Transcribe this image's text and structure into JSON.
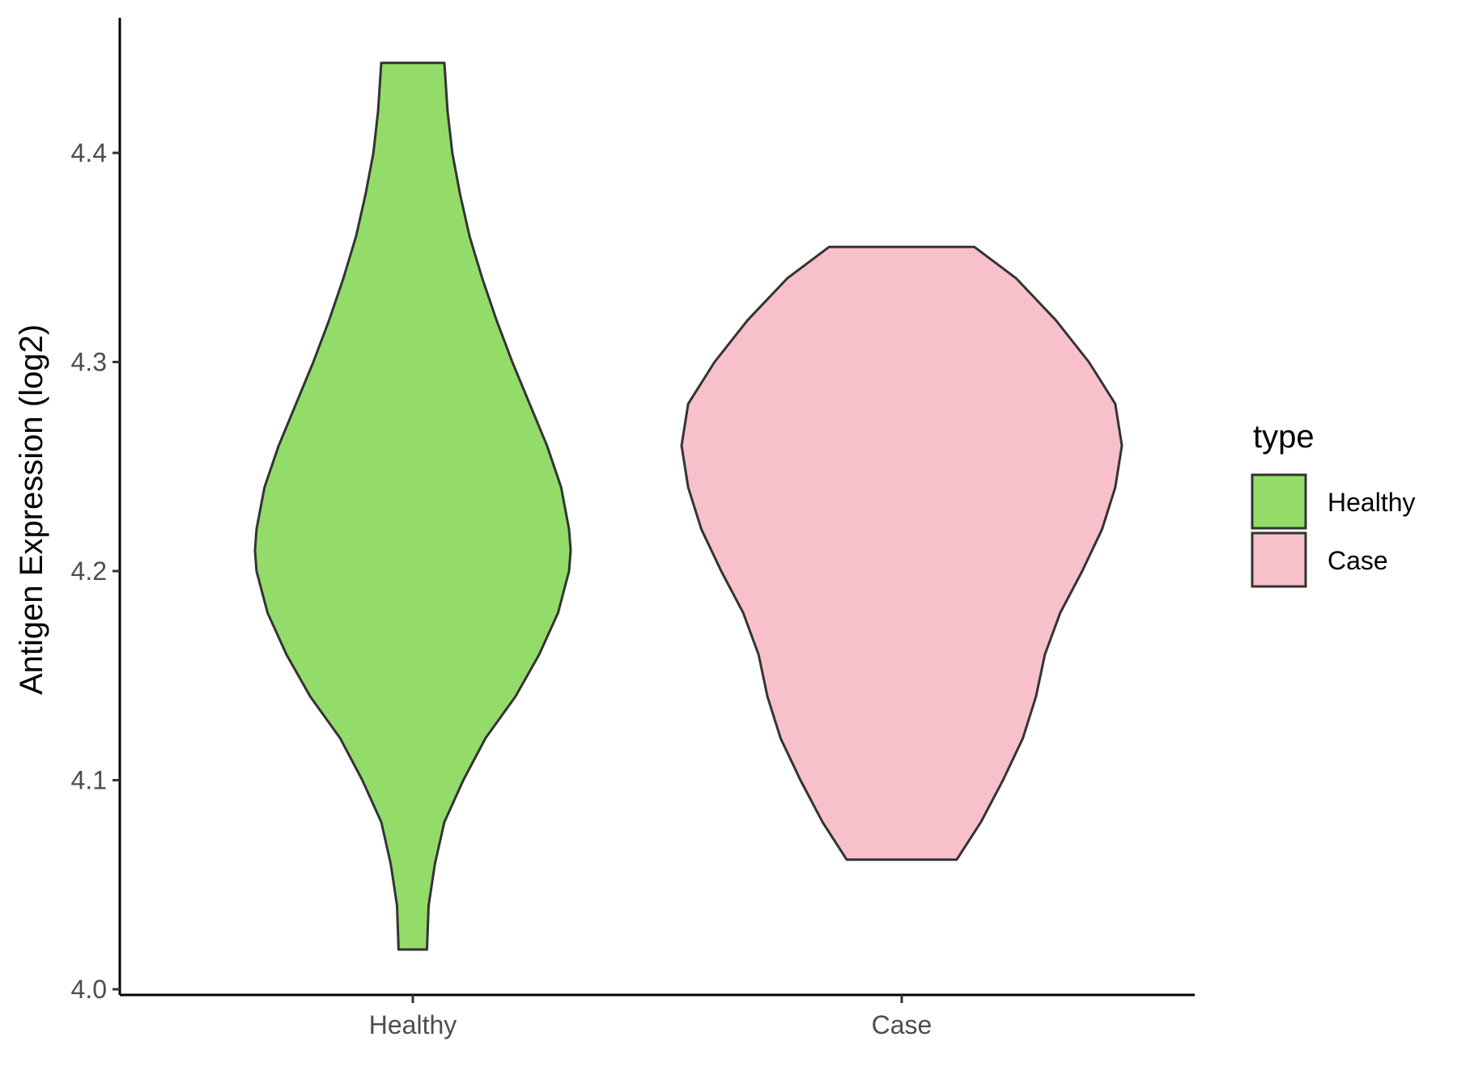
{
  "chart_data": {
    "type": "violin",
    "categories": [
      "Healthy",
      "Case"
    ],
    "ylabel": "Antigen Expression (log2)",
    "xlabel": "",
    "ylim": [
      4.0,
      4.465
    ],
    "yticks": [
      "4.0",
      "4.1",
      "4.2",
      "4.3",
      "4.4"
    ],
    "grid": false,
    "legend": {
      "title": "type",
      "position": "right",
      "entries": [
        "Healthy",
        "Case"
      ]
    },
    "colors": {
      "Healthy": "#93dc6a",
      "Case": "#f7c0cb",
      "outline": "#333333",
      "axis": "#000000"
    },
    "series": [
      {
        "name": "Healthy",
        "y_min": 4.019,
        "y_max": 4.443,
        "density_profile": [
          [
            4.019,
            0.09
          ],
          [
            4.04,
            0.1
          ],
          [
            4.06,
            0.14
          ],
          [
            4.08,
            0.2
          ],
          [
            4.1,
            0.32
          ],
          [
            4.12,
            0.46
          ],
          [
            4.14,
            0.65
          ],
          [
            4.16,
            0.8
          ],
          [
            4.18,
            0.92
          ],
          [
            4.2,
            0.99
          ],
          [
            4.21,
            1.0
          ],
          [
            4.22,
            0.99
          ],
          [
            4.24,
            0.94
          ],
          [
            4.26,
            0.85
          ],
          [
            4.28,
            0.74
          ],
          [
            4.3,
            0.63
          ],
          [
            4.32,
            0.53
          ],
          [
            4.34,
            0.44
          ],
          [
            4.36,
            0.36
          ],
          [
            4.38,
            0.3
          ],
          [
            4.4,
            0.25
          ],
          [
            4.42,
            0.22
          ],
          [
            4.443,
            0.2
          ]
        ]
      },
      {
        "name": "Case",
        "y_min": 4.062,
        "y_max": 4.355,
        "density_profile": [
          [
            4.062,
            0.25
          ],
          [
            4.08,
            0.36
          ],
          [
            4.1,
            0.46
          ],
          [
            4.12,
            0.55
          ],
          [
            4.14,
            0.61
          ],
          [
            4.16,
            0.65
          ],
          [
            4.18,
            0.72
          ],
          [
            4.2,
            0.82
          ],
          [
            4.22,
            0.91
          ],
          [
            4.24,
            0.97
          ],
          [
            4.26,
            1.0
          ],
          [
            4.28,
            0.97
          ],
          [
            4.3,
            0.85
          ],
          [
            4.32,
            0.7
          ],
          [
            4.34,
            0.52
          ],
          [
            4.355,
            0.33
          ]
        ]
      }
    ]
  }
}
